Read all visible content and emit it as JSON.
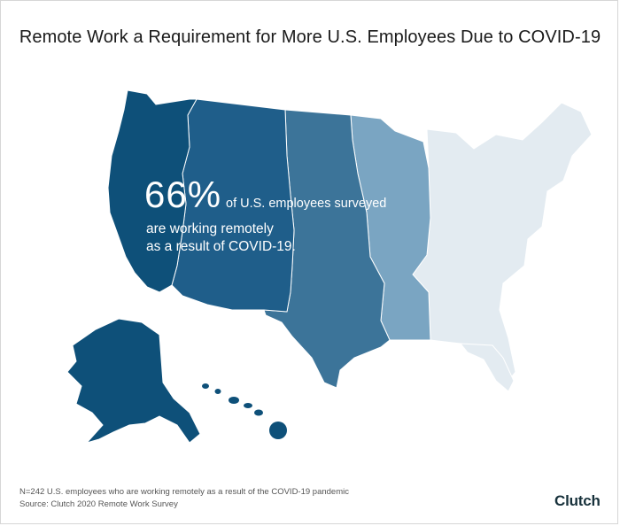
{
  "header": {
    "title": "Remote Work a Requirement for More U.S. Employees Due to COVID-19"
  },
  "stat": {
    "value": "66%",
    "line1": "of U.S. employees surveyed",
    "line2": "are working remotely",
    "line3": "as a result of COVID-19."
  },
  "footer": {
    "note": "N=242 U.S. employees who are working remotely as a result of the COVID-19 pandemic",
    "source": "Source: Clutch 2020 Remote Work Survey"
  },
  "logo": {
    "text": "Clutch"
  },
  "colors": {
    "west": "#0e5079",
    "mountain": "#1f5e8a",
    "central": "#3c7499",
    "midwest_east": "#7aa5c2",
    "east": "#e3ebf1",
    "border": "#ffffff",
    "logo_dot": "#e62415"
  }
}
